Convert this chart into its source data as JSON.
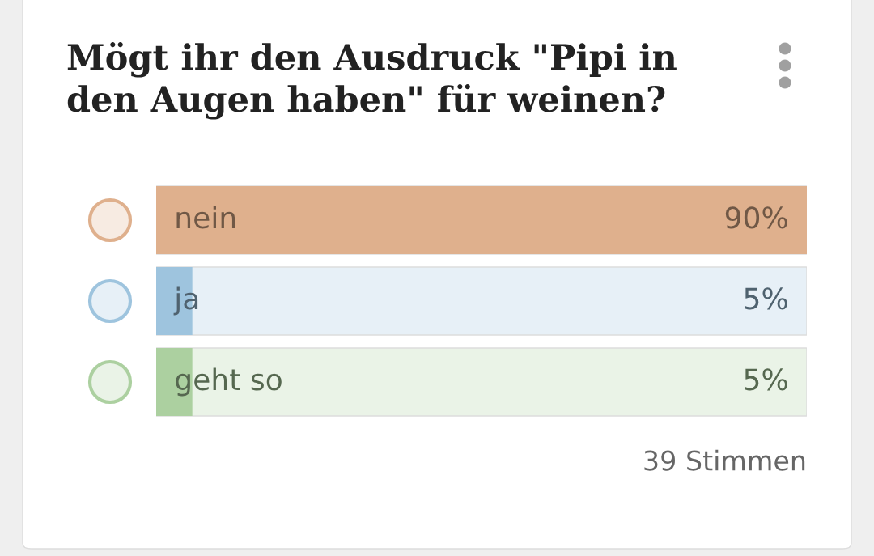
{
  "chart_data": {
    "type": "bar",
    "orientation": "horizontal",
    "title": "Mögt ihr den Ausdruck \"Pipi in den Augen haben\" für weinen?",
    "categories": [
      "nein",
      "ja",
      "geht so"
    ],
    "values": [
      90,
      5,
      5
    ],
    "colors": [
      "#dfb08d",
      "#9ec4de",
      "#acd0a0"
    ],
    "value_labels": [
      "90%",
      "5%",
      "5%"
    ],
    "annotations": [
      "39 Stimmen"
    ]
  }
}
